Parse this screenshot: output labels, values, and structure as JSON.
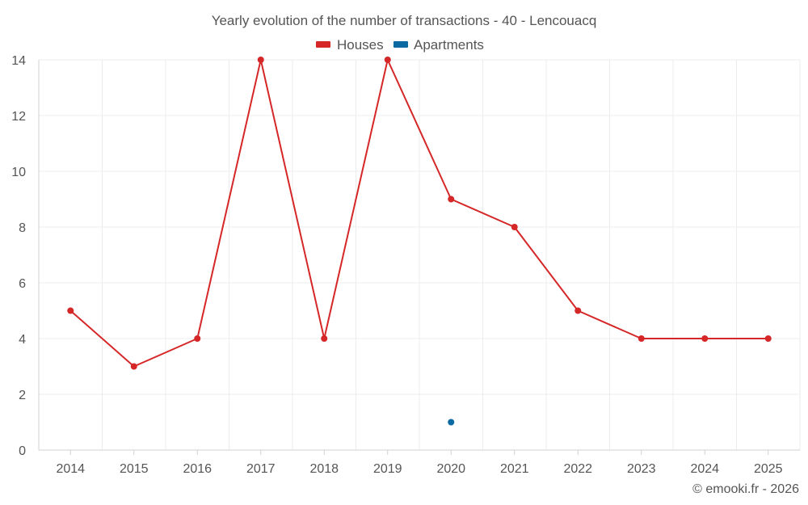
{
  "chart_data": {
    "type": "line",
    "title": "Yearly evolution of the number of transactions - 40 - Lencouacq",
    "categories": [
      "2014",
      "2015",
      "2016",
      "2017",
      "2018",
      "2019",
      "2020",
      "2021",
      "2022",
      "2023",
      "2024",
      "2025"
    ],
    "series": [
      {
        "name": "Houses",
        "color": "#d62728",
        "values": [
          5,
          3,
          4,
          14,
          4,
          14,
          9,
          8,
          5,
          4,
          4,
          4
        ]
      },
      {
        "name": "Apartments",
        "color": "#0b6aa2",
        "values": [
          null,
          null,
          null,
          null,
          null,
          null,
          1,
          null,
          null,
          null,
          null,
          null
        ]
      }
    ],
    "ylim": [
      0,
      14
    ],
    "yticks": [
      0,
      2,
      4,
      6,
      8,
      10,
      12,
      14
    ],
    "xlabel": "",
    "ylabel": "",
    "grid": true,
    "legend_position": "top-center"
  },
  "credit": "© emooki.fr - 2026"
}
